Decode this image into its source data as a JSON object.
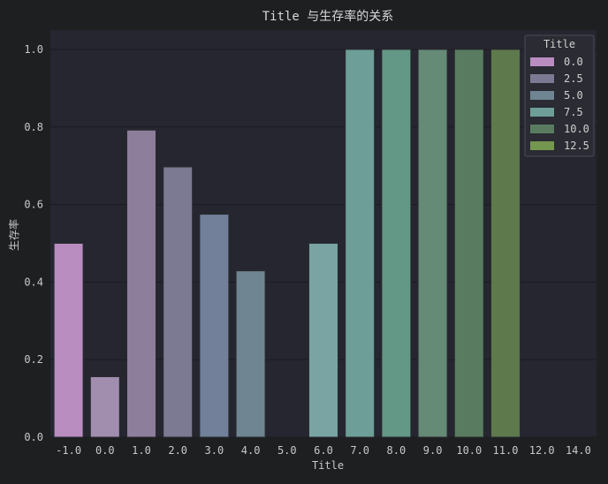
{
  "chart_data": {
    "type": "bar",
    "title": "Title 与生存率的关系",
    "xlabel": "Title",
    "ylabel": "生存率",
    "categories": [
      "-1.0",
      "0.0",
      "1.0",
      "2.0",
      "3.0",
      "4.0",
      "5.0",
      "6.0",
      "7.0",
      "8.0",
      "9.0",
      "10.0",
      "11.0",
      "12.0",
      "14.0"
    ],
    "values": [
      0.5,
      0.156,
      0.792,
      0.697,
      0.575,
      0.429,
      0,
      0.5,
      1.0,
      1.0,
      1.0,
      1.0,
      1.0,
      0,
      0
    ],
    "colors": [
      "#b98dc0",
      "#a18eaf",
      "#8d7e9c",
      "#7c7a93",
      "#72809a",
      "#6f8591",
      "#7a9aa0",
      "#7aa4a3",
      "#6d9f98",
      "#639786",
      "#658a75",
      "#597c61",
      "#5e7a4d",
      "#6a8a52",
      "#75964f"
    ],
    "ylim": [
      0,
      1.05
    ],
    "yticks": [
      "0.0",
      "0.2",
      "0.4",
      "0.6",
      "0.8",
      "1.0"
    ],
    "grid": true,
    "legend": {
      "title": "Title",
      "position": "top-right",
      "entries": [
        {
          "label": "0.0",
          "color": "#b98dc0"
        },
        {
          "label": "2.5",
          "color": "#7c7a93"
        },
        {
          "label": "5.0",
          "color": "#6f8591"
        },
        {
          "label": "7.5",
          "color": "#6d9f98"
        },
        {
          "label": "10.0",
          "color": "#597c61"
        },
        {
          "label": "12.5",
          "color": "#75964f"
        }
      ]
    }
  }
}
